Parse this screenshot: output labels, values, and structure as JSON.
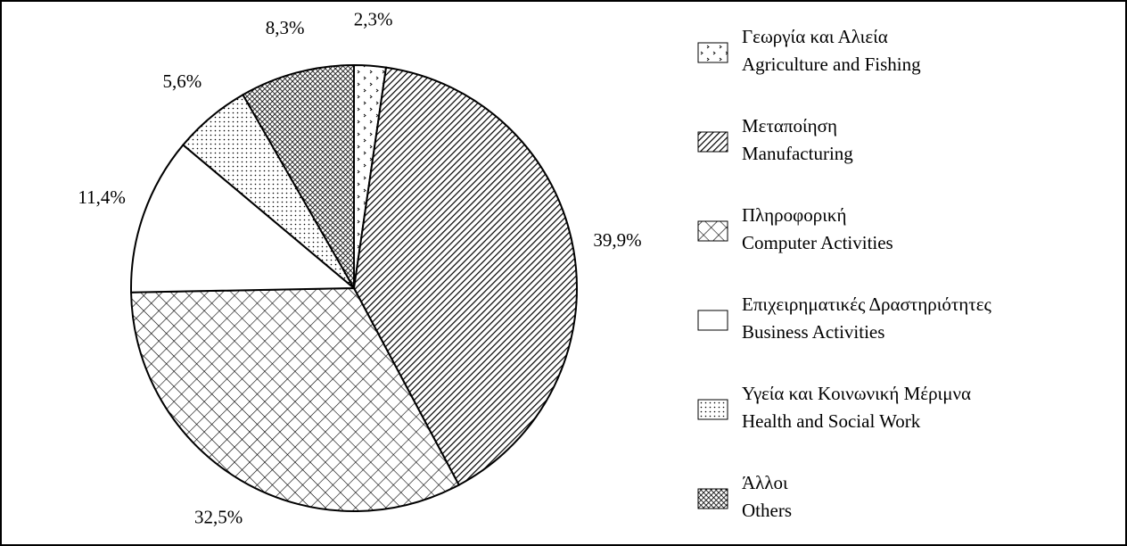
{
  "chart_data": {
    "type": "pie",
    "categories": [
      [
        "Γεωργία και Αλιεία",
        "Agriculture and Fishing"
      ],
      [
        "Μεταποίηση",
        "Manufacturing"
      ],
      [
        "Πληροφορική",
        "Computer Activities"
      ],
      [
        "Επιχειρηματικές Δραστηριότητες",
        "Business Activities"
      ],
      [
        "Υγεία και Κοινωνική Μέριμνα",
        "Health and Social Work"
      ],
      [
        "Άλλοι",
        "Others"
      ]
    ],
    "values": [
      2.3,
      39.9,
      32.5,
      11.4,
      5.6,
      8.3
    ],
    "value_labels": [
      "2,3%",
      "39,9%",
      "32,5%",
      "11,4%",
      "5,6%",
      "8,3%"
    ],
    "legend": "right"
  }
}
